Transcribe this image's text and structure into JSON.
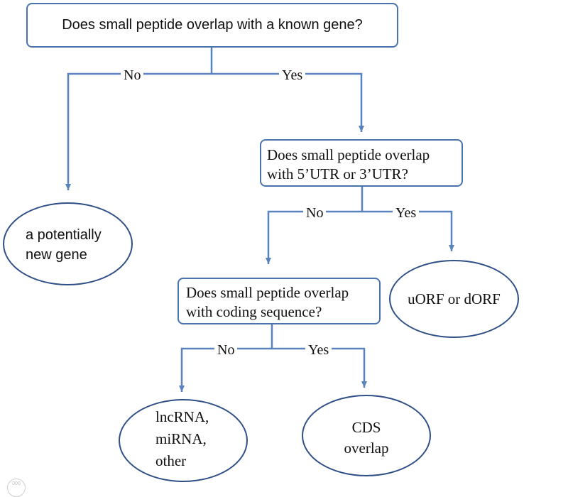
{
  "diagram": {
    "q1": "Does small peptide overlap with a known gene?",
    "q1_no": "No",
    "q1_yes": "Yes",
    "new_gene": [
      "a potentially",
      "new gene"
    ],
    "q2": [
      "Does small peptide overlap",
      "with 5’UTR or 3’UTR?"
    ],
    "q2_no": "No",
    "q2_yes": "Yes",
    "uorf": "uORF or dORF",
    "q3": [
      "Does small peptide overlap",
      "with coding sequence?"
    ],
    "q3_no": "No",
    "q3_yes": "Yes",
    "lncrna": [
      "lncRNA,",
      "miRNA,",
      "other"
    ],
    "cds": [
      "CDS",
      "overlap"
    ],
    "corner_mark": "000"
  },
  "colors": {
    "connector": "#5a82bc",
    "box_border": "#4a73ad",
    "ellipse_border": "#2f4f86"
  }
}
